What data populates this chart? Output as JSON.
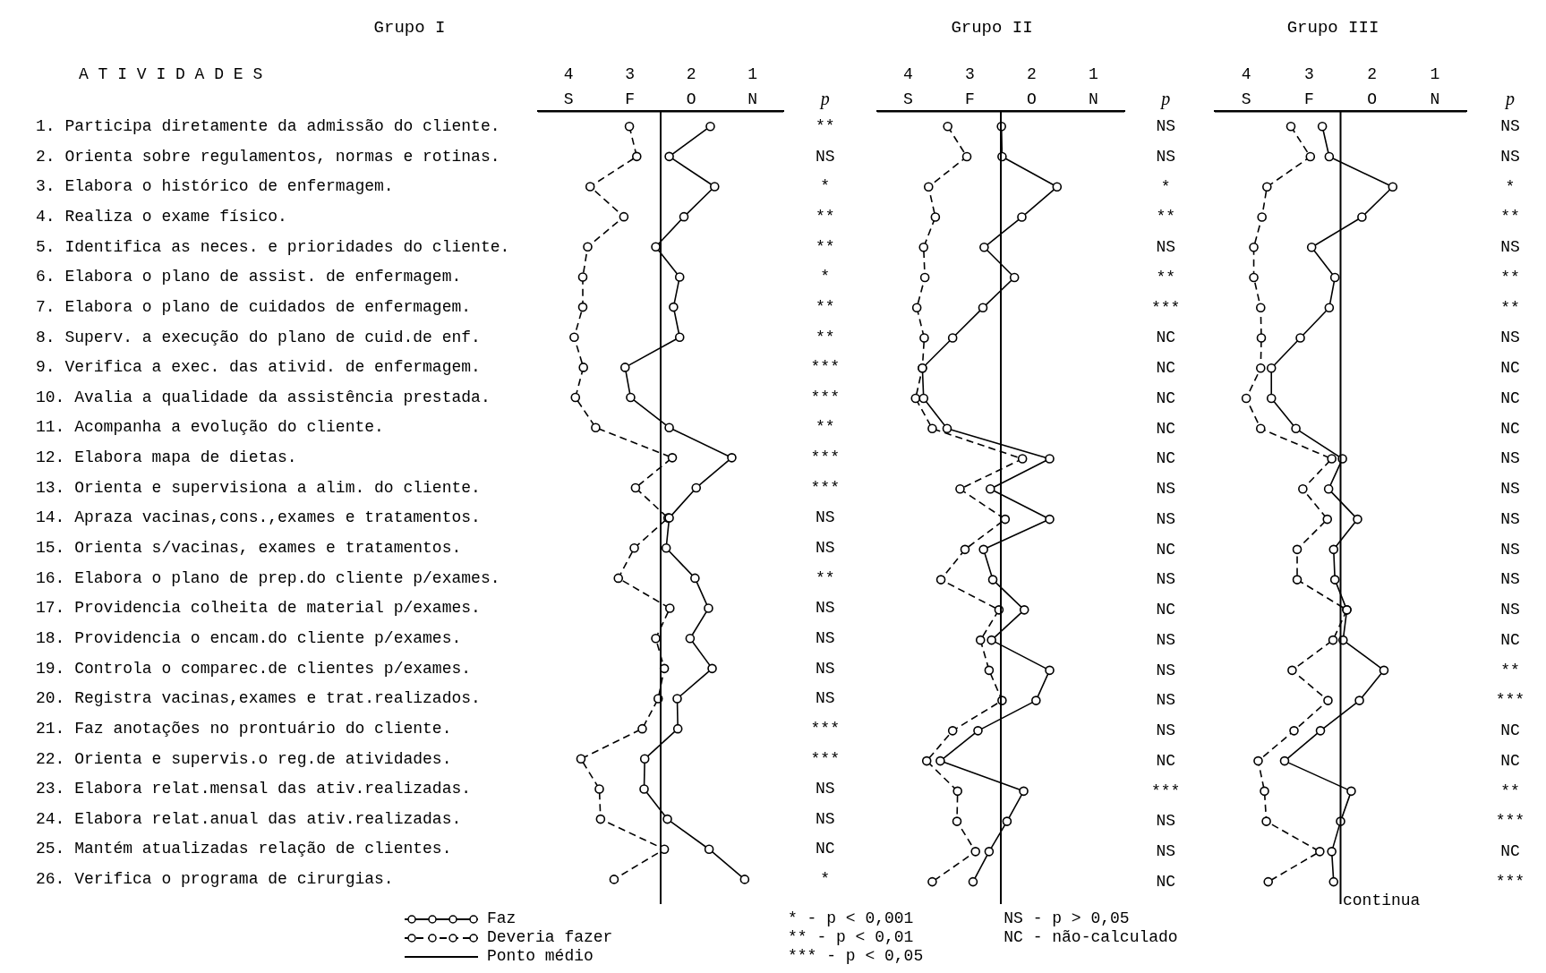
{
  "chart_data": [
    {
      "type": "line",
      "title": "Grupo I",
      "ylabel": "A T I V I D A D E S",
      "orientation": "horizontal",
      "categories": [
        "1. Participa diretamente da admissão do cliente.",
        "2. Orienta sobre regulamentos, normas e rotinas.",
        "3. Elabora o histórico de enfermagem.",
        "4. Realiza o exame físico.",
        "5. Identifica as neces. e prioridades do cliente.",
        "6. Elabora o plano de assist. de enfermagem.",
        "7. Elabora o plano de cuidados de enfermagem.",
        "8. Superv. a execução do plano de cuid.de enf.",
        "9. Verifica a exec. das ativid. de enfermagem.",
        "10. Avalia a qualidade da assistência prestada.",
        "11. Acompanha a evolução do cliente.",
        "12. Elabora mapa de dietas.",
        "13. Orienta e supervisiona a alim. do cliente.",
        "14. Apraza vacinas,cons.,exames e tratamentos.",
        "15. Orienta s/vacinas, exames e tratamentos.",
        "16. Elabora o plano de prep.do cliente p/exames.",
        "17. Providencia colheita de material p/exames.",
        "18. Providencia o encam.do cliente p/exames.",
        "19. Controla o comparec.de clientes p/exames.",
        "20. Registra vacinas,exames e trat.realizados.",
        "21. Faz anotações no prontuário do cliente.",
        "22. Orienta e supervis.o reg.de atividades.",
        "23. Elabora relat.mensal das ativ.realizadas.",
        "24. Elabora relat.anual das ativ.realizadas.",
        "25. Mantém atualizadas relação de clientes.",
        "26. Verifica o programa de cirurgias."
      ],
      "xlim": [
        4.5,
        0.5
      ],
      "xticks": [
        4,
        3,
        2,
        1
      ],
      "grid": false,
      "marker": "circle",
      "legend": "bottom",
      "ref_lines": [
        {
          "axis": "x",
          "value": 2.5,
          "label": "Ponto médio",
          "color": "#000000"
        }
      ],
      "series": [
        {
          "name": "Faz",
          "color": "#000000",
          "line_style": "solid",
          "values": [
            1.69,
            2.36,
            1.62,
            2.12,
            2.58,
            2.19,
            2.29,
            2.19,
            3.08,
            2.99,
            2.36,
            1.34,
            1.92,
            2.36,
            2.41,
            1.94,
            1.72,
            2.02,
            1.66,
            2.23,
            2.22,
            2.76,
            2.77,
            2.39,
            1.71,
            1.13
          ]
        },
        {
          "name": "Deveria fazer",
          "color": "#000000",
          "line_style": "dashed",
          "values": [
            3.01,
            2.89,
            3.65,
            3.1,
            3.69,
            3.77,
            3.77,
            3.91,
            3.76,
            3.89,
            3.56,
            2.31,
            2.91,
            2.38,
            2.93,
            3.19,
            2.35,
            2.58,
            2.44,
            2.54,
            2.8,
            3.8,
            3.5,
            3.48,
            2.44,
            3.26
          ]
        }
      ],
      "annotations": [
        "S",
        "F",
        "O",
        "N",
        "p",
        "**",
        "NS",
        "*",
        "**",
        "**",
        "*",
        "**",
        "**",
        "***",
        "***",
        "**",
        "***",
        "***",
        "NS",
        "NS",
        "**",
        "NS",
        "NS",
        "NS",
        "NS",
        "***",
        "***",
        "NS",
        "NS",
        "NC",
        "*"
      ]
    },
    {
      "type": "line",
      "title": "Grupo II",
      "orientation": "horizontal",
      "tick_labels": "x",
      "categories": [
        null,
        null,
        null,
        null,
        null,
        null,
        null,
        null,
        null,
        null,
        null,
        null,
        null,
        null,
        null,
        null,
        null,
        null,
        null,
        null,
        null,
        null,
        null,
        null,
        null,
        null
      ],
      "xlim": [
        4.5,
        0.5
      ],
      "xticks": [
        4,
        3,
        2,
        1
      ],
      "grid": false,
      "marker": "circle",
      "ref_lines": [
        {
          "axis": "x",
          "value": 2.5,
          "color": "#000000"
        }
      ],
      "series": [
        {
          "color": "#000000",
          "line_style": "solid",
          "values": [
            2.49,
            2.48,
            1.59,
            2.16,
            2.77,
            2.28,
            2.79,
            3.28,
            3.77,
            3.75,
            3.37,
            1.71,
            2.67,
            1.71,
            2.78,
            2.63,
            2.12,
            2.65,
            1.71,
            1.93,
            2.87,
            3.48,
            2.13,
            2.4,
            2.69,
            2.95
          ]
        },
        {
          "color": "#000000",
          "line_style": "dashed",
          "values": [
            3.36,
            3.05,
            3.67,
            3.56,
            3.75,
            3.73,
            3.86,
            3.74,
            3.77,
            3.88,
            3.61,
            2.15,
            3.16,
            2.43,
            3.08,
            3.47,
            2.53,
            2.83,
            2.69,
            2.48,
            3.28,
            3.7,
            3.2,
            3.21,
            2.91,
            3.61
          ]
        }
      ],
      "annotations": [
        "S",
        "F",
        "O",
        "N",
        "p",
        "NS",
        "NS",
        "*",
        "**",
        "NS",
        "**",
        "***",
        "NC",
        "NC",
        "NC",
        "NC",
        "NC",
        "NS",
        "NS",
        "NC",
        "NS",
        "NC",
        "NS",
        "NS",
        "NS",
        "NS",
        "NC",
        "***",
        "NS",
        "NS",
        "NC",
        "* - p < 0,001",
        "** - p < 0,01",
        "*** - p < 0,05",
        "NS - p > 0,05",
        "NC - não-calculado"
      ]
    },
    {
      "type": "line",
      "title": "Grupo III",
      "orientation": "horizontal",
      "tick_labels": "x",
      "categories": [
        null,
        null,
        null,
        null,
        null,
        null,
        null,
        null,
        null,
        null,
        null,
        null,
        null,
        null,
        null,
        null,
        null,
        null,
        null,
        null,
        null,
        null,
        null,
        null,
        null,
        null
      ],
      "xlim": [
        4.5,
        0.5
      ],
      "xticks": [
        4,
        3,
        2,
        1
      ],
      "grid": false,
      "marker": "circle",
      "ref_lines": [
        {
          "axis": "x",
          "value": 2.5,
          "color": "#000000"
        }
      ],
      "series": [
        {
          "color": "#000000",
          "line_style": "solid",
          "values": [
            2.79,
            2.68,
            1.67,
            2.16,
            2.96,
            2.59,
            2.68,
            3.14,
            3.6,
            3.6,
            3.21,
            2.47,
            2.69,
            2.23,
            2.61,
            2.59,
            2.4,
            2.46,
            1.81,
            2.2,
            2.82,
            3.39,
            2.33,
            2.5,
            2.64,
            2.61
          ]
        },
        {
          "color": "#000000",
          "line_style": "dashed",
          "values": [
            3.29,
            2.98,
            3.67,
            3.75,
            3.88,
            3.88,
            3.77,
            3.76,
            3.77,
            4.0,
            3.77,
            2.64,
            3.1,
            2.71,
            3.19,
            3.19,
            2.4,
            2.62,
            3.27,
            2.7,
            3.24,
            3.81,
            3.71,
            3.68,
            2.83,
            3.65
          ]
        }
      ],
      "annotations": [
        "S",
        "F",
        "O",
        "N",
        "p",
        "NS",
        "NS",
        "*",
        "**",
        "NS",
        "**",
        "**",
        "NS",
        "NC",
        "NC",
        "NC",
        "NS",
        "NS",
        "NS",
        "NS",
        "NS",
        "NS",
        "NC",
        "**",
        "***",
        "NC",
        "NC",
        "**",
        "***",
        "NC",
        "***",
        "continua"
      ]
    }
  ]
}
